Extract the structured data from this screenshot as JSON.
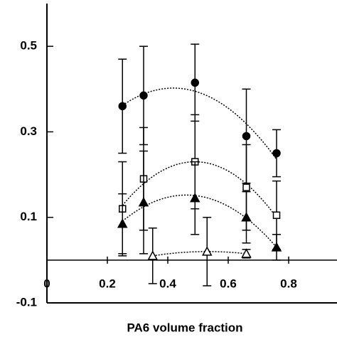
{
  "chart_data": {
    "type": "scatter",
    "x_label": "PA6 volume fraction",
    "xlim": [
      0,
      0.96
    ],
    "ylim": [
      -0.1,
      0.6
    ],
    "xticks": [
      0,
      0.2,
      0.4,
      0.6,
      0.8
    ],
    "yticks": [
      -0.1,
      0.1,
      0.3,
      0.5
    ],
    "fit": "quadratic",
    "error_bars": true,
    "series": [
      {
        "marker": "circle",
        "filled": true,
        "color": "#000000",
        "x": [
          0.25,
          0.32,
          0.49,
          0.66,
          0.76
        ],
        "values": [
          0.36,
          0.385,
          0.415,
          0.29,
          0.25
        ],
        "errors": [
          0.11,
          0.115,
          0.09,
          0.11,
          0.055
        ]
      },
      {
        "marker": "square",
        "filled": false,
        "color": "#000000",
        "x": [
          0.25,
          0.32,
          0.49,
          0.66,
          0.76
        ],
        "values": [
          0.12,
          0.19,
          0.23,
          0.17,
          0.105
        ],
        "errors": [
          0.11,
          0.12,
          0.11,
          0.1,
          0.08
        ]
      },
      {
        "marker": "triangle",
        "filled": true,
        "color": "#000000",
        "x": [
          0.25,
          0.32,
          0.49,
          0.66,
          0.76
        ],
        "values": [
          0.085,
          0.135,
          0.145,
          0.1,
          0.03
        ],
        "errors": [
          0.07,
          0.12,
          0.085,
          0.06,
          0.03
        ]
      },
      {
        "marker": "triangle",
        "filled": false,
        "color": "#000000",
        "x": [
          0.35,
          0.53,
          0.66
        ],
        "values": [
          0.01,
          0.02,
          0.015
        ],
        "errors": [
          0.065,
          0.08,
          0.01
        ]
      }
    ]
  }
}
